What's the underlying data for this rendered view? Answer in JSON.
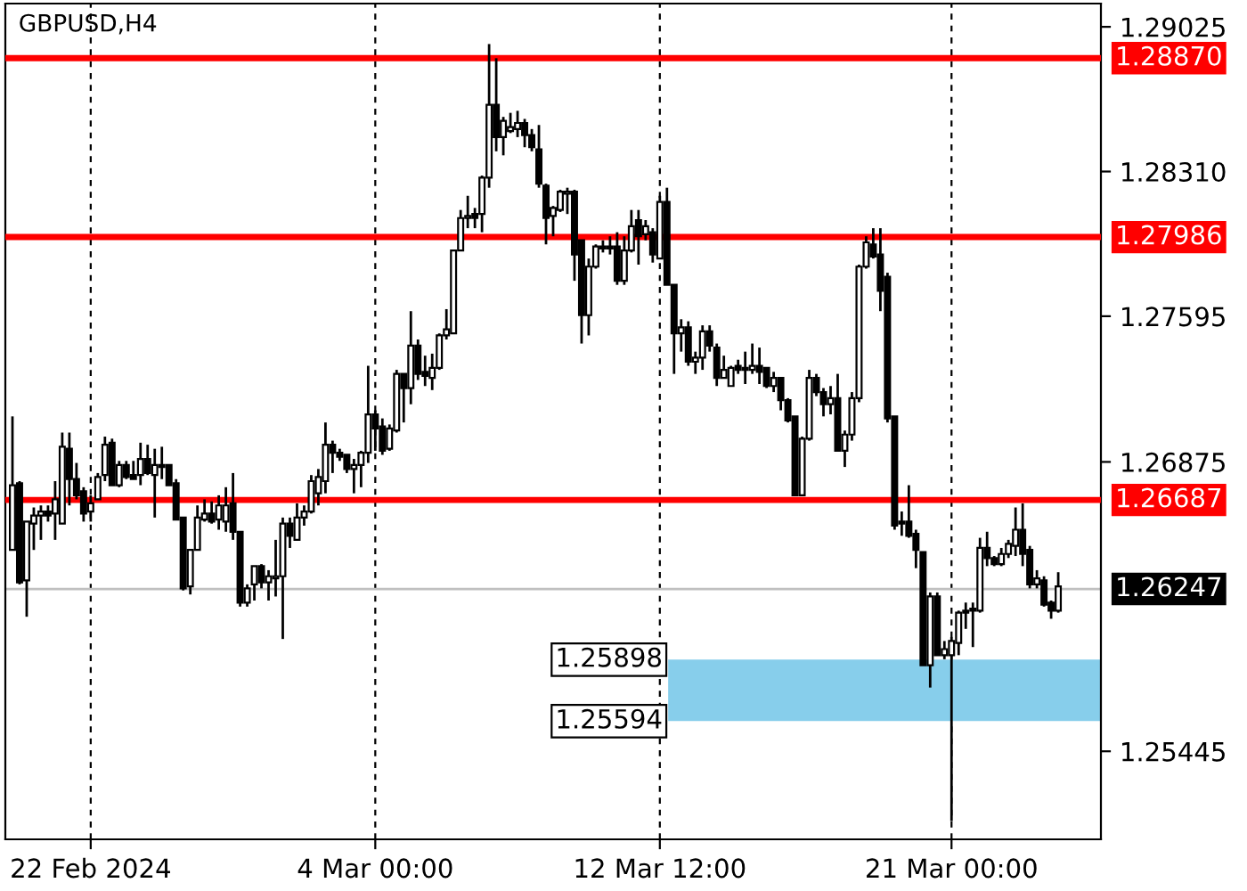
{
  "chart_data": {
    "type": "candlestick",
    "title": "GBPUSD,H4",
    "categories": [
      null,
      null,
      null,
      null,
      null,
      null,
      null,
      null,
      null,
      null,
      null,
      "22 Feb 2024",
      null,
      null,
      null,
      null,
      null,
      null,
      null,
      null,
      null,
      null,
      null,
      null,
      null,
      null,
      null,
      null,
      null,
      null,
      null,
      null,
      null,
      null,
      null,
      null,
      null,
      null,
      null,
      null,
      null,
      null,
      null,
      null,
      null,
      null,
      null,
      null,
      null,
      null,
      null,
      "4 Mar 00:00",
      null,
      null,
      null,
      null,
      null,
      null,
      null,
      null,
      null,
      null,
      null,
      null,
      null,
      null,
      null,
      null,
      null,
      null,
      null,
      null,
      null,
      null,
      null,
      null,
      null,
      null,
      null,
      null,
      null,
      null,
      null,
      null,
      null,
      null,
      null,
      null,
      null,
      null,
      null,
      "12 Mar 12:00",
      null,
      null,
      null,
      null,
      null,
      null,
      null,
      null,
      null,
      null,
      null,
      null,
      null,
      null,
      null,
      null,
      null,
      null,
      null,
      null,
      null,
      null,
      null,
      null,
      null,
      null,
      null,
      null,
      null,
      null,
      null,
      null,
      null,
      null,
      null,
      null,
      null,
      null,
      null,
      null,
      "21 Mar 00:00",
      null,
      null,
      null,
      null,
      null,
      null,
      null,
      null,
      null,
      null,
      null,
      null,
      null,
      null,
      null
    ],
    "ohlc": [
      [
        1.2644,
        1.271,
        1.2644,
        1.2676
      ],
      [
        1.2677,
        1.2678,
        1.2627,
        1.2628
      ],
      [
        1.2629,
        1.2658,
        1.2611,
        1.2658
      ],
      [
        1.2657,
        1.2665,
        1.2644,
        1.2661
      ],
      [
        1.2661,
        1.2666,
        1.2649,
        1.2663
      ],
      [
        1.2663,
        1.2666,
        1.2658,
        1.2661
      ],
      [
        1.2662,
        1.2678,
        1.2649,
        1.2669
      ],
      [
        1.2657,
        1.2702,
        1.2657,
        1.2695
      ],
      [
        1.2694,
        1.2702,
        1.2666,
        1.2679
      ],
      [
        1.2679,
        1.2687,
        1.2669,
        1.2671
      ],
      [
        1.2673,
        1.2675,
        1.2658,
        1.2662
      ],
      [
        1.2663,
        1.2671,
        1.2658,
        1.2667
      ],
      [
        1.2669,
        1.2682,
        1.2669,
        1.268
      ],
      [
        1.2681,
        1.27,
        1.2678,
        1.2696
      ],
      [
        1.2697,
        1.2699,
        1.2676,
        1.2676
      ],
      [
        1.2676,
        1.2688,
        1.2675,
        1.2686
      ],
      [
        1.2686,
        1.2688,
        1.2679,
        1.268
      ],
      [
        1.2681,
        1.2688,
        1.2679,
        1.2679
      ],
      [
        1.2681,
        1.2697,
        1.2676,
        1.2689
      ],
      [
        1.2689,
        1.2696,
        1.2681,
        1.2682
      ],
      [
        1.2681,
        1.2694,
        1.266,
        1.2686
      ],
      [
        1.2685,
        1.2695,
        1.2679,
        1.2686
      ],
      [
        1.2686,
        1.2686,
        1.2676,
        1.2676
      ],
      [
        1.2677,
        1.2679,
        1.2659,
        1.2659
      ],
      [
        1.266,
        1.266,
        1.2624,
        1.2625
      ],
      [
        1.2626,
        1.2644,
        1.2622,
        1.2644
      ],
      [
        1.2644,
        1.2666,
        1.2644,
        1.266
      ],
      [
        1.2659,
        1.2669,
        1.2658,
        1.2662
      ],
      [
        1.2662,
        1.2668,
        1.2657,
        1.2658
      ],
      [
        1.2659,
        1.2671,
        1.2654,
        1.2666
      ],
      [
        1.2658,
        1.2675,
        1.2653,
        1.2666
      ],
      [
        1.2667,
        1.2682,
        1.2649,
        1.2653
      ],
      [
        1.2653,
        1.2653,
        1.2616,
        1.2618
      ],
      [
        1.2618,
        1.2627,
        1.2616,
        1.2625
      ],
      [
        1.2627,
        1.2636,
        1.2619,
        1.2636
      ],
      [
        1.2636,
        1.2637,
        1.2625,
        1.2628
      ],
      [
        1.2628,
        1.2634,
        1.2619,
        1.2631
      ],
      [
        1.263,
        1.2649,
        1.2621,
        1.2631
      ],
      [
        1.2631,
        1.266,
        1.26,
        1.2657
      ],
      [
        1.2657,
        1.266,
        1.2645,
        1.2651
      ],
      [
        1.2649,
        1.2667,
        1.2649,
        1.266
      ],
      [
        1.266,
        1.2666,
        1.2656,
        1.2663
      ],
      [
        1.2663,
        1.2681,
        1.2662,
        1.2678
      ],
      [
        1.2672,
        1.2684,
        1.2666,
        1.268
      ],
      [
        1.2678,
        1.2707,
        1.2672,
        1.2696
      ],
      [
        1.2696,
        1.2698,
        1.2682,
        1.2692
      ],
      [
        1.2692,
        1.2694,
        1.2688,
        1.269
      ],
      [
        1.2691,
        1.2691,
        1.2682,
        1.2684
      ],
      [
        1.2684,
        1.2689,
        1.2672,
        1.2686
      ],
      [
        1.2686,
        1.2693,
        1.2675,
        1.2692
      ],
      [
        1.2692,
        1.2735,
        1.2687,
        1.2711
      ],
      [
        1.2711,
        1.2713,
        1.2693,
        1.2704
      ],
      [
        1.2705,
        1.2709,
        1.2691,
        1.2693
      ],
      [
        1.2694,
        1.2706,
        1.2693,
        1.2704
      ],
      [
        1.2703,
        1.2733,
        1.2702,
        1.2731
      ],
      [
        1.2731,
        1.2731,
        1.2707,
        1.2724
      ],
      [
        1.2724,
        1.2762,
        1.2716,
        1.2745
      ],
      [
        1.2745,
        1.2748,
        1.2728,
        1.2731
      ],
      [
        1.2732,
        1.274,
        1.2725,
        1.273
      ],
      [
        1.2729,
        1.2741,
        1.2723,
        1.2734
      ],
      [
        1.2734,
        1.2751,
        1.2733,
        1.275
      ],
      [
        1.275,
        1.2763,
        1.2748,
        1.2753
      ],
      [
        1.2751,
        1.2792,
        1.2751,
        1.2792
      ],
      [
        1.2792,
        1.2812,
        1.2792,
        1.2808
      ],
      [
        1.2808,
        1.2819,
        1.2803,
        1.2809
      ],
      [
        1.281,
        1.2813,
        1.2803,
        1.2808
      ],
      [
        1.281,
        1.2829,
        1.2801,
        1.2828
      ],
      [
        1.2828,
        1.2894,
        1.2823,
        1.2864
      ],
      [
        1.2864,
        1.2887,
        1.2841,
        1.2848
      ],
      [
        1.2848,
        1.2858,
        1.2839,
        1.2856
      ],
      [
        1.2851,
        1.286,
        1.285,
        1.2853
      ],
      [
        1.2852,
        1.2861,
        1.2848,
        1.2855
      ],
      [
        1.2855,
        1.2857,
        1.2843,
        1.2849
      ],
      [
        1.2849,
        1.2852,
        1.2841,
        1.2843
      ],
      [
        1.2842,
        1.2854,
        1.2823,
        1.2825
      ],
      [
        1.2824,
        1.2825,
        1.2795,
        1.2808
      ],
      [
        1.2809,
        1.2814,
        1.2799,
        1.2813
      ],
      [
        1.2812,
        1.2822,
        1.2811,
        1.2821
      ],
      [
        1.282,
        1.2823,
        1.281,
        1.2821
      ],
      [
        1.2821,
        1.2822,
        1.2777,
        1.279
      ],
      [
        1.2797,
        1.2797,
        1.2746,
        1.276
      ],
      [
        1.276,
        1.2788,
        1.275,
        1.2784
      ],
      [
        1.2784,
        1.2795,
        1.2783,
        1.2794
      ],
      [
        1.2793,
        1.2797,
        1.2791,
        1.2794
      ],
      [
        1.2793,
        1.2799,
        1.279,
        1.2794
      ],
      [
        1.2794,
        1.2801,
        1.2775,
        1.2777
      ],
      [
        1.2777,
        1.2799,
        1.2775,
        1.2792
      ],
      [
        1.2792,
        1.2812,
        1.2791,
        1.2804
      ],
      [
        1.2807,
        1.2812,
        1.2785,
        1.2799
      ],
      [
        1.28,
        1.2807,
        1.2797,
        1.2804
      ],
      [
        1.2801,
        1.2803,
        1.2786,
        1.279
      ],
      [
        1.2788,
        1.2819,
        1.2788,
        1.2816
      ],
      [
        1.2816,
        1.2823,
        1.2775,
        1.2775
      ],
      [
        1.2775,
        1.2775,
        1.2731,
        1.2751
      ],
      [
        1.2751,
        1.2758,
        1.2742,
        1.2754
      ],
      [
        1.2754,
        1.2757,
        1.2735,
        1.2737
      ],
      [
        1.2737,
        1.2742,
        1.2731,
        1.2739
      ],
      [
        1.2739,
        1.2755,
        1.2733,
        1.2752
      ],
      [
        1.2752,
        1.2755,
        1.2742,
        1.2745
      ],
      [
        1.2744,
        1.2746,
        1.2725,
        1.2729
      ],
      [
        1.2729,
        1.274,
        1.2729,
        1.2733
      ],
      [
        1.2725,
        1.2735,
        1.2725,
        1.2734
      ],
      [
        1.2735,
        1.2738,
        1.2731,
        1.2733
      ],
      [
        1.2734,
        1.2742,
        1.2726,
        1.2733
      ],
      [
        1.2733,
        1.2746,
        1.2731,
        1.2735
      ],
      [
        1.2735,
        1.2744,
        1.2726,
        1.2732
      ],
      [
        1.2734,
        1.2734,
        1.2724,
        1.2725
      ],
      [
        1.2725,
        1.2732,
        1.2722,
        1.2729
      ],
      [
        1.2729,
        1.2729,
        1.2713,
        1.2718
      ],
      [
        1.2718,
        1.2719,
        1.2707,
        1.2708
      ],
      [
        1.271,
        1.271,
        1.2671,
        1.2671
      ],
      [
        1.2671,
        1.27,
        1.2671,
        1.2699
      ],
      [
        1.2699,
        1.2733,
        1.2698,
        1.2729
      ],
      [
        1.2729,
        1.2731,
        1.272,
        1.2722
      ],
      [
        1.2722,
        1.2724,
        1.271,
        1.2716
      ],
      [
        1.2716,
        1.2725,
        1.2711,
        1.2719
      ],
      [
        1.2719,
        1.2731,
        1.2693,
        1.2693
      ],
      [
        1.2693,
        1.2703,
        1.2685,
        1.2701
      ],
      [
        1.2701,
        1.2722,
        1.2698,
        1.2719
      ],
      [
        1.2719,
        1.2785,
        1.2717,
        1.2784
      ],
      [
        1.2784,
        1.2799,
        1.2783,
        1.2796
      ],
      [
        1.2795,
        1.2803,
        1.2788,
        1.2789
      ],
      [
        1.279,
        1.2803,
        1.2762,
        1.2772
      ],
      [
        1.2779,
        1.2781,
        1.2707,
        1.2709
      ],
      [
        1.271,
        1.271,
        1.2654,
        1.2656
      ],
      [
        1.2657,
        1.2663,
        1.2651,
        1.2658
      ],
      [
        1.2658,
        1.2676,
        1.265,
        1.2651
      ],
      [
        1.2652,
        1.2654,
        1.2635,
        1.2644
      ],
      [
        1.2643,
        1.2643,
        1.2587,
        1.2587
      ],
      [
        1.2587,
        1.2623,
        1.2576,
        1.2621
      ],
      [
        1.2621,
        1.2623,
        1.2592,
        1.2592
      ],
      [
        1.2592,
        1.2599,
        1.259,
        1.2595
      ],
      [
        1.2592,
        1.2601,
        1.251,
        1.2599
      ],
      [
        1.2598,
        1.2614,
        1.2592,
        1.2613
      ],
      [
        1.2613,
        1.2618,
        1.2605,
        1.2614
      ],
      [
        1.2614,
        1.2618,
        1.2596,
        1.2615
      ],
      [
        1.2614,
        1.265,
        1.2613,
        1.2645
      ],
      [
        1.2645,
        1.2653,
        1.2636,
        1.264
      ],
      [
        1.264,
        1.2641,
        1.2636,
        1.2637
      ],
      [
        1.2637,
        1.2645,
        1.2636,
        1.2642
      ],
      [
        1.2642,
        1.2649,
        1.264,
        1.2647
      ],
      [
        1.2646,
        1.2665,
        1.2641,
        1.2654
      ],
      [
        1.2654,
        1.2667,
        1.2636,
        1.2642
      ],
      [
        1.2644,
        1.2646,
        1.2625,
        1.2627
      ],
      [
        1.2627,
        1.2634,
        1.2625,
        1.263
      ],
      [
        1.2629,
        1.2631,
        1.2616,
        1.2617
      ],
      [
        1.2618,
        1.2619,
        1.261,
        1.2614
      ],
      [
        1.2614,
        1.2633,
        1.2613,
        1.2626
      ]
    ],
    "ylim": [
      1.2501,
      1.2914
    ],
    "yticks": [
      1.29025,
      {
        "value": 1.2831,
        "label": "1.28310"
      },
      1.27595,
      1.26875,
      1.25445
    ],
    "grid": "x",
    "ref_lines": [
      {
        "axis": "y",
        "value": 1.2887,
        "label": "1.28870",
        "color": "#ff0000"
      },
      {
        "axis": "y",
        "value": 1.27986,
        "label": "1.27986",
        "color": "#ff0000"
      },
      {
        "axis": "y",
        "value": 1.26687,
        "label": "1.26687",
        "color": "#ff0000"
      },
      {
        "axis": "y",
        "value": 1.26247,
        "label": "1.26247",
        "color": "#c0c0c0"
      }
    ],
    "bands": [
      {
        "axis": "y",
        "from": 1.25594,
        "to": 1.25898,
        "color": "#87ceeb"
      }
    ],
    "annotations": [
      "1.25898",
      "1.25594"
    ]
  }
}
